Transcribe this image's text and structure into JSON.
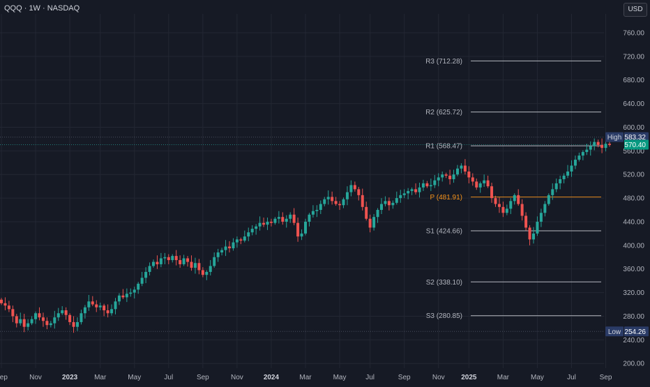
{
  "header": {
    "title": "QQQ · 1W · NASDAQ",
    "currency": "USD"
  },
  "colors": {
    "up": "#26a69a",
    "down": "#ef5350",
    "pivot": "#f7931a",
    "grid": "#232733",
    "level": "#d1d4dc",
    "price_badge": "#089981",
    "hl_badge": "#2a3b66"
  },
  "chart_data": {
    "type": "candlestick",
    "ylim": [
      192,
      780
    ],
    "y_ticks": [
      760,
      720,
      680,
      640,
      600,
      560,
      520,
      480,
      440,
      400,
      360,
      320,
      280,
      240,
      200
    ],
    "x_labels": [
      {
        "label": "Sep",
        "i": 0
      },
      {
        "label": "Nov",
        "i": 9
      },
      {
        "label": "2023",
        "i": 18
      },
      {
        "label": "Mar",
        "i": 26
      },
      {
        "label": "May",
        "i": 35
      },
      {
        "label": "Jul",
        "i": 44
      },
      {
        "label": "Sep",
        "i": 53
      },
      {
        "label": "Nov",
        "i": 62
      },
      {
        "label": "2024",
        "i": 71
      },
      {
        "label": "Mar",
        "i": 80
      },
      {
        "label": "May",
        "i": 89
      },
      {
        "label": "Jul",
        "i": 97
      },
      {
        "label": "Sep",
        "i": 106
      },
      {
        "label": "Nov",
        "i": 115
      },
      {
        "label": "2025",
        "i": 123
      },
      {
        "label": "Mar",
        "i": 132
      },
      {
        "label": "May",
        "i": 141
      },
      {
        "label": "Jul",
        "i": 150
      },
      {
        "label": "Sep",
        "i": 159
      }
    ],
    "levels": [
      {
        "name": "R3",
        "value": 712.28,
        "label": "R3 (712.28)",
        "kind": "normal"
      },
      {
        "name": "R2",
        "value": 625.72,
        "label": "R2 (625.72)",
        "kind": "normal"
      },
      {
        "name": "R1",
        "value": 568.47,
        "label": "R1 (568.47)",
        "kind": "normal"
      },
      {
        "name": "P",
        "value": 481.91,
        "label": "P (481.91)",
        "kind": "pivot"
      },
      {
        "name": "S1",
        "value": 424.66,
        "label": "S1 (424.66)",
        "kind": "normal"
      },
      {
        "name": "S2",
        "value": 338.1,
        "label": "S2 (338.10)",
        "kind": "normal"
      },
      {
        "name": "S3",
        "value": 280.85,
        "label": "S3 (280.85)",
        "kind": "normal"
      }
    ],
    "high": {
      "label": "High",
      "value": 583.32,
      "value_text": "583.32"
    },
    "low": {
      "label": "Low",
      "value": 254.26,
      "value_text": "254.26"
    },
    "last_price": {
      "value": 570.4,
      "value_text": "570.40"
    },
    "closes": [
      302,
      298,
      292,
      280,
      268,
      275,
      262,
      268,
      275,
      285,
      278,
      272,
      265,
      268,
      278,
      285,
      290,
      282,
      270,
      262,
      270,
      285,
      295,
      305,
      300,
      295,
      298,
      290,
      285,
      292,
      305,
      315,
      312,
      318,
      320,
      325,
      335,
      345,
      355,
      365,
      372,
      368,
      378,
      380,
      375,
      382,
      375,
      368,
      378,
      372,
      362,
      370,
      358,
      350,
      355,
      365,
      380,
      388,
      392,
      398,
      395,
      405,
      410,
      408,
      415,
      422,
      428,
      432,
      438,
      435,
      440,
      438,
      445,
      448,
      440,
      445,
      452,
      438,
      415,
      420,
      440,
      452,
      458,
      460,
      470,
      478,
      482,
      475,
      470,
      468,
      478,
      490,
      502,
      495,
      485,
      465,
      445,
      430,
      448,
      460,
      470,
      475,
      468,
      472,
      480,
      485,
      488,
      492,
      495,
      490,
      498,
      505,
      500,
      502,
      510,
      515,
      520,
      518,
      512,
      520,
      530,
      535,
      525,
      515,
      508,
      498,
      505,
      510,
      500,
      480,
      470,
      465,
      455,
      462,
      475,
      485,
      470,
      450,
      430,
      410,
      420,
      440,
      455,
      470,
      485,
      495,
      505,
      512,
      518,
      525,
      535,
      545,
      552,
      558,
      562,
      568,
      575,
      570,
      565,
      572,
      570
    ]
  }
}
